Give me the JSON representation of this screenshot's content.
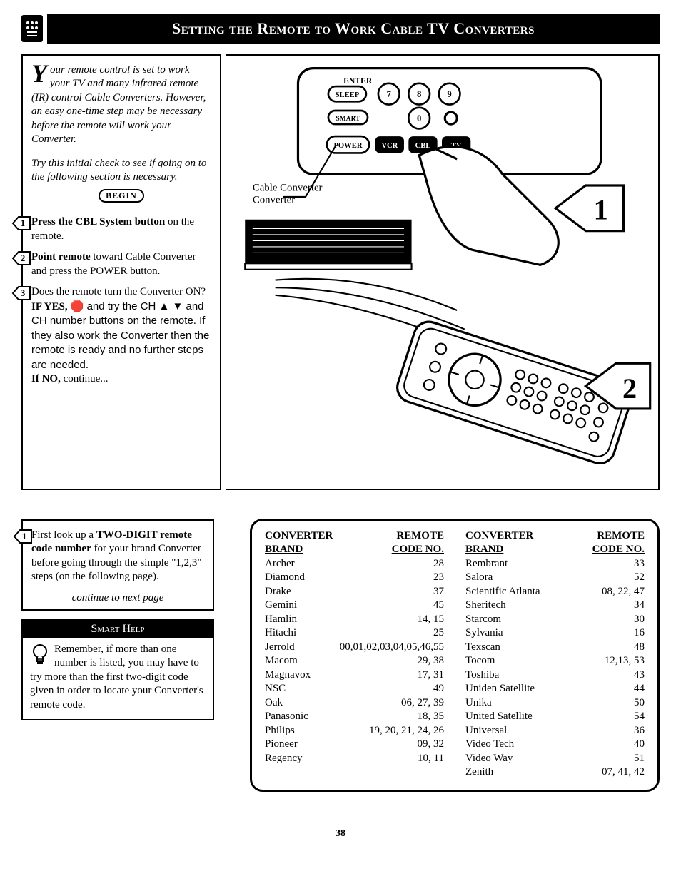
{
  "header": {
    "title": "Setting the Remote to Work Cable TV Converters"
  },
  "intro": {
    "first_letter": "Y",
    "text": "our remote control is set to work your TV and many infrared remote (IR) control Cable Converters. However, an easy one-time step may be necessary before the remote will work your Converter.",
    "try": "Try this initial check to see if going on to the following section is necessary.",
    "begin_label": "BEGIN"
  },
  "steps": [
    {
      "n": "1",
      "bold": "Press the CBL System button",
      "rest": " on the remote."
    },
    {
      "n": "2",
      "bold": "Point remote",
      "rest": " toward Cable Converter and press the POWER button."
    },
    {
      "n": "3",
      "bold": "",
      "rest": "Does the remote turn the Converter ON?",
      "extra_bold": "IF YES,",
      "extra": " 🛑  and try the CH ▲ ▼ and CH number buttons on the remote. If they also work the Converter then the remote is ready and no further steps are needed.",
      "ifno_bold": "If NO,",
      "ifno": " continue..."
    }
  ],
  "diagram": {
    "label_cable": "Cable Converter",
    "btn_enter": "ENTER",
    "btn_sleep": "SLEEP",
    "btn_smart": "SMART",
    "btn_power": "POWER",
    "btn_vcr": "VCR",
    "btn_cbl": "CBL",
    "btn_tv": "TV",
    "marker1": "1",
    "marker2": "2"
  },
  "lookup": {
    "n": "1",
    "bold": "TWO-DIGIT remote code number",
    "pre": "First look up a ",
    "post": " for your brand Converter before going through the simple \"1,2,3\" steps (on the following page).",
    "continue": "continue to next page"
  },
  "smarthelp": {
    "title": "Smart Help",
    "text": "Remember, if more than one number is listed, you may have to try more than the first two-digit code given in order to locate your Converter's remote code."
  },
  "table": {
    "head_brand": "CONVERTER",
    "head_brand2": "BRAND",
    "head_code": "REMOTE",
    "head_code2": "CODE NO.",
    "left": [
      {
        "b": "Archer",
        "c": "28"
      },
      {
        "b": "Diamond",
        "c": "23"
      },
      {
        "b": "Drake",
        "c": "37"
      },
      {
        "b": "Gemini",
        "c": "45"
      },
      {
        "b": "Hamlin",
        "c": "14, 15"
      },
      {
        "b": "Hitachi",
        "c": "25"
      },
      {
        "b": "Jerrold",
        "c": "00,01,02,03,04,05,46,55"
      },
      {
        "b": "Macom",
        "c": "29, 38"
      },
      {
        "b": "Magnavox",
        "c": "17, 31"
      },
      {
        "b": "NSC",
        "c": "49"
      },
      {
        "b": "Oak",
        "c": "06, 27, 39"
      },
      {
        "b": "Panasonic",
        "c": "18, 35"
      },
      {
        "b": "Philips",
        "c": "19, 20, 21, 24, 26"
      },
      {
        "b": "Pioneer",
        "c": "09, 32"
      },
      {
        "b": "Regency",
        "c": "10, 11"
      }
    ],
    "right": [
      {
        "b": "Rembrant",
        "c": "33"
      },
      {
        "b": "Salora",
        "c": "52"
      },
      {
        "b": "Scientific Atlanta",
        "c": "08, 22, 47"
      },
      {
        "b": "Sheritech",
        "c": "34"
      },
      {
        "b": "Starcom",
        "c": "30"
      },
      {
        "b": "Sylvania",
        "c": "16"
      },
      {
        "b": "Texscan",
        "c": "48"
      },
      {
        "b": "Tocom",
        "c": "12,13, 53"
      },
      {
        "b": "Toshiba",
        "c": "43"
      },
      {
        "b": "Uniden Satellite",
        "c": "44"
      },
      {
        "b": "Unika",
        "c": "50"
      },
      {
        "b": "United Satellite",
        "c": "54"
      },
      {
        "b": "Universal",
        "c": "36"
      },
      {
        "b": "Video Tech",
        "c": "40"
      },
      {
        "b": "Video Way",
        "c": "51"
      },
      {
        "b": "Zenith",
        "c": "07, 41, 42"
      }
    ]
  },
  "page_number": "38"
}
